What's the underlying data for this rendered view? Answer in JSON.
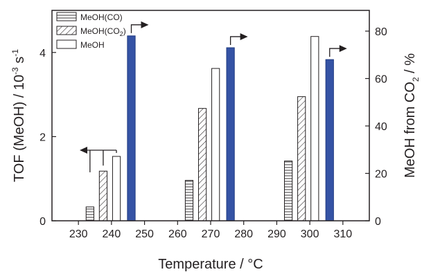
{
  "chart_data": {
    "type": "bar",
    "x_ticks": [
      "230",
      "240",
      "250",
      "260",
      "270",
      "280",
      "290",
      "300",
      "310"
    ],
    "xlim": [
      222,
      318
    ],
    "xlabel": {
      "text": "Temperature / °C"
    },
    "y_left": {
      "lim": [
        0,
        5
      ],
      "ticks": [
        "0",
        "2",
        "4"
      ],
      "tick_values": [
        0,
        2,
        4
      ],
      "label_main": "TOF (MeOH) / 10",
      "label_exp": "-3",
      "label_tail": " s",
      "label_exp2": "-1"
    },
    "y_right": {
      "lim": [
        0,
        88.75
      ],
      "ticks": [
        "0",
        "20",
        "40",
        "60",
        "80"
      ],
      "tick_values": [
        0,
        20,
        40,
        60,
        80
      ],
      "label_main": "MeOH from CO",
      "label_sub": "2",
      "label_tail": " / %"
    },
    "legend": {
      "items": [
        {
          "label": "MeOH(CO)",
          "sub": "",
          "pattern": "hlines"
        },
        {
          "label": "MeOH(CO",
          "sub": "2",
          "suffix": ")",
          "pattern": "diag"
        },
        {
          "label": "MeOH",
          "sub": "",
          "pattern": "white"
        }
      ]
    },
    "bar_width": 2.35,
    "series": [
      {
        "pattern": "hlines",
        "axis": "left",
        "points": [
          {
            "x": 233.5,
            "y": 0.33
          },
          {
            "x": 263.5,
            "y": 0.96
          },
          {
            "x": 293.5,
            "y": 1.42
          }
        ]
      },
      {
        "pattern": "diag",
        "axis": "left",
        "points": [
          {
            "x": 237.5,
            "y": 1.18
          },
          {
            "x": 267.5,
            "y": 2.67
          },
          {
            "x": 297.5,
            "y": 2.95
          }
        ]
      },
      {
        "pattern": "white",
        "axis": "left",
        "points": [
          {
            "x": 241.5,
            "y": 1.53
          },
          {
            "x": 271.5,
            "y": 3.62
          },
          {
            "x": 301.5,
            "y": 4.38
          }
        ]
      },
      {
        "pattern": "blue",
        "axis": "right",
        "points": [
          {
            "x": 246.0,
            "y": 78.0
          },
          {
            "x": 276.0,
            "y": 73.0
          },
          {
            "x": 306.0,
            "y": 68.0
          }
        ]
      }
    ],
    "colors": {
      "blue_bar": "#3553a5",
      "ink": "#231f20"
    }
  }
}
